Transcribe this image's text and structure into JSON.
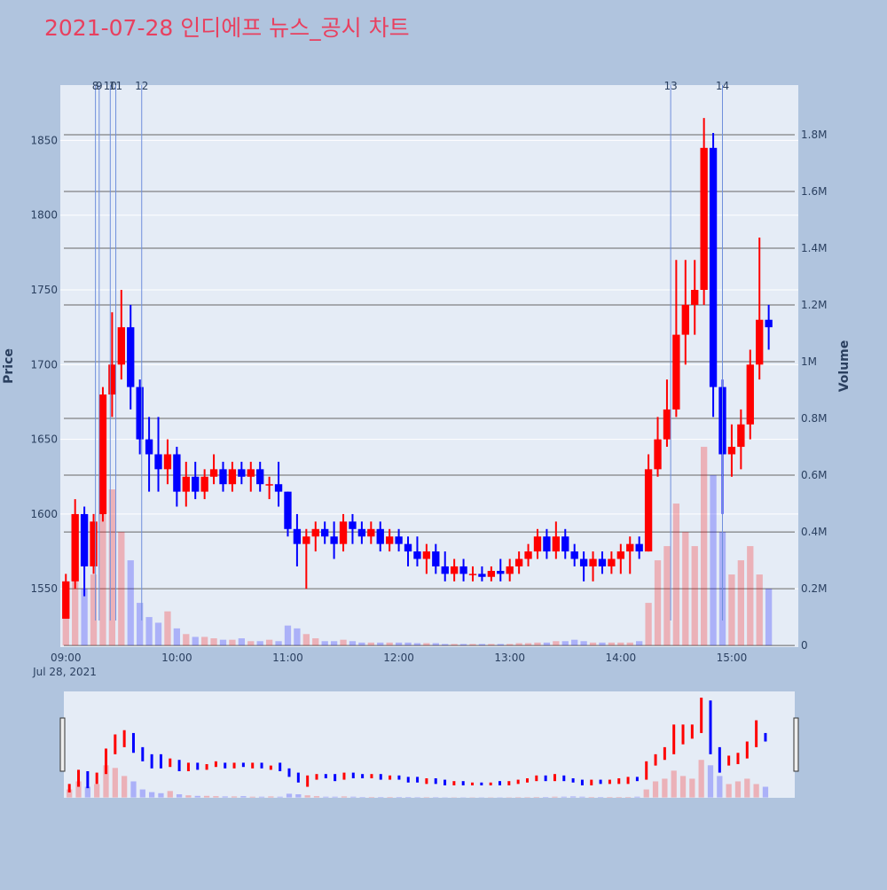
{
  "chart_data": {
    "type": "candlestick",
    "title": "2021-07-28 인디에프 뉴스_공시 차트",
    "y_label": "Price",
    "y2_label": "Volume",
    "date_label": "Jul 28, 2021",
    "increasing_color": "#ff0000",
    "decreasing_color": "#0000ff",
    "x": [
      "09:00",
      "09:05",
      "09:10",
      "09:15",
      "09:20",
      "09:25",
      "09:30",
      "09:35",
      "09:40",
      "09:45",
      "09:50",
      "09:55",
      "10:00",
      "10:05",
      "10:10",
      "10:15",
      "10:20",
      "10:25",
      "10:30",
      "10:35",
      "10:40",
      "10:45",
      "10:50",
      "10:55",
      "11:00",
      "11:05",
      "11:10",
      "11:15",
      "11:20",
      "11:25",
      "11:30",
      "11:35",
      "11:40",
      "11:45",
      "11:50",
      "11:55",
      "12:00",
      "12:05",
      "12:10",
      "12:15",
      "12:20",
      "12:25",
      "12:30",
      "12:35",
      "12:40",
      "12:45",
      "12:50",
      "12:55",
      "13:00",
      "13:05",
      "13:10",
      "13:15",
      "13:20",
      "13:25",
      "13:30",
      "13:35",
      "13:40",
      "13:45",
      "13:50",
      "13:55",
      "14:00",
      "14:05",
      "14:10",
      "14:15",
      "14:20",
      "14:25",
      "14:30",
      "14:35",
      "14:40",
      "14:45",
      "14:50",
      "14:55",
      "15:00",
      "15:05",
      "15:10",
      "15:15",
      "15:20"
    ],
    "open": [
      1530,
      1555,
      1600,
      1565,
      1600,
      1680,
      1700,
      1725,
      1685,
      1650,
      1640,
      1630,
      1640,
      1615,
      1625,
      1615,
      1625,
      1630,
      1620,
      1630,
      1625,
      1630,
      1620,
      1620,
      1615,
      1590,
      1580,
      1585,
      1590,
      1585,
      1580,
      1595,
      1590,
      1585,
      1590,
      1580,
      1585,
      1580,
      1575,
      1570,
      1575,
      1565,
      1560,
      1565,
      1560,
      1560,
      1558,
      1562,
      1560,
      1565,
      1570,
      1575,
      1585,
      1575,
      1585,
      1575,
      1570,
      1565,
      1570,
      1565,
      1570,
      1575,
      1580,
      1575,
      1630,
      1650,
      1670,
      1720,
      1740,
      1750,
      1845,
      1685,
      1640,
      1645,
      1660,
      1700,
      1730
    ],
    "high": [
      1560,
      1610,
      1605,
      1600,
      1685,
      1735,
      1750,
      1740,
      1690,
      1665,
      1665,
      1650,
      1645,
      1635,
      1635,
      1630,
      1640,
      1635,
      1635,
      1635,
      1635,
      1635,
      1625,
      1635,
      1615,
      1600,
      1590,
      1595,
      1595,
      1595,
      1600,
      1600,
      1595,
      1595,
      1595,
      1590,
      1590,
      1585,
      1585,
      1580,
      1580,
      1575,
      1570,
      1570,
      1565,
      1565,
      1565,
      1570,
      1570,
      1575,
      1580,
      1590,
      1590,
      1595,
      1590,
      1580,
      1575,
      1575,
      1575,
      1575,
      1580,
      1585,
      1585,
      1640,
      1665,
      1690,
      1770,
      1770,
      1770,
      1865,
      1855,
      1690,
      1660,
      1670,
      1710,
      1785,
      1740
    ],
    "low": [
      1530,
      1550,
      1545,
      1560,
      1595,
      1665,
      1690,
      1670,
      1640,
      1615,
      1615,
      1620,
      1605,
      1605,
      1610,
      1610,
      1620,
      1615,
      1615,
      1620,
      1615,
      1615,
      1610,
      1605,
      1585,
      1565,
      1550,
      1575,
      1580,
      1570,
      1575,
      1580,
      1580,
      1580,
      1575,
      1575,
      1575,
      1565,
      1565,
      1560,
      1560,
      1555,
      1555,
      1555,
      1555,
      1555,
      1555,
      1555,
      1555,
      1560,
      1565,
      1570,
      1570,
      1570,
      1570,
      1565,
      1555,
      1555,
      1560,
      1560,
      1560,
      1560,
      1570,
      1575,
      1625,
      1645,
      1665,
      1700,
      1720,
      1740,
      1665,
      1600,
      1625,
      1630,
      1650,
      1690,
      1710
    ],
    "close": [
      1555,
      1600,
      1565,
      1595,
      1680,
      1700,
      1725,
      1685,
      1650,
      1640,
      1630,
      1640,
      1615,
      1625,
      1615,
      1625,
      1630,
      1620,
      1630,
      1625,
      1630,
      1620,
      1620,
      1615,
      1590,
      1580,
      1585,
      1590,
      1585,
      1580,
      1595,
      1590,
      1585,
      1590,
      1580,
      1585,
      1580,
      1575,
      1570,
      1575,
      1565,
      1560,
      1565,
      1560,
      1560,
      1558,
      1562,
      1560,
      1565,
      1570,
      1575,
      1585,
      1575,
      1585,
      1575,
      1570,
      1565,
      1570,
      1565,
      1570,
      1575,
      1580,
      1575,
      1630,
      1650,
      1670,
      1720,
      1740,
      1750,
      1845,
      1685,
      1640,
      1645,
      1660,
      1700,
      1730,
      1725
    ],
    "volume": [
      150000,
      300000,
      200000,
      250000,
      600000,
      550000,
      400000,
      300000,
      150000,
      100000,
      80000,
      120000,
      60000,
      40000,
      30000,
      30000,
      25000,
      20000,
      20000,
      25000,
      15000,
      15000,
      20000,
      15000,
      70000,
      60000,
      40000,
      25000,
      15000,
      15000,
      20000,
      15000,
      10000,
      10000,
      10000,
      10000,
      10000,
      10000,
      8000,
      8000,
      8000,
      5000,
      5000,
      5000,
      5000,
      5000,
      5000,
      5000,
      5000,
      8000,
      8000,
      10000,
      10000,
      15000,
      15000,
      20000,
      15000,
      10000,
      10000,
      10000,
      10000,
      10000,
      15000,
      150000,
      300000,
      350000,
      500000,
      400000,
      350000,
      700000,
      600000,
      400000,
      250000,
      300000,
      350000,
      250000,
      200000
    ],
    "events": [
      {
        "time": "09:16",
        "label": "8"
      },
      {
        "time": "09:18",
        "label": "9"
      },
      {
        "time": "09:24",
        "label": "10"
      },
      {
        "time": "09:27",
        "label": "11"
      },
      {
        "time": "09:41",
        "label": "12"
      },
      {
        "time": "14:27",
        "label": "13"
      },
      {
        "time": "14:55",
        "label": "14"
      }
    ],
    "xlim": [
      "08:57",
      "15:36"
    ],
    "xticks": [
      "09:00",
      "10:00",
      "11:00",
      "12:00",
      "13:00",
      "14:00",
      "15:00"
    ],
    "ylim": [
      1511,
      1887
    ],
    "yticks": [
      1550,
      1600,
      1650,
      1700,
      1750,
      1800,
      1850
    ],
    "y2lim": [
      -6000,
      1975000
    ],
    "y2ticks": [
      0,
      {
        "value": 200000,
        "label": "0.2M"
      },
      {
        "value": 400000,
        "label": "0.4M"
      },
      {
        "value": 600000,
        "label": "0.6M"
      },
      {
        "value": 800000,
        "label": "0.8M"
      },
      {
        "value": 1000000,
        "label": "1M"
      },
      {
        "value": 1200000,
        "label": "1.2M"
      },
      {
        "value": 1400000,
        "label": "1.4M"
      },
      {
        "value": 1600000,
        "label": "1.6M"
      },
      {
        "value": 1800000,
        "label": "1.8M"
      }
    ],
    "grid": true
  }
}
